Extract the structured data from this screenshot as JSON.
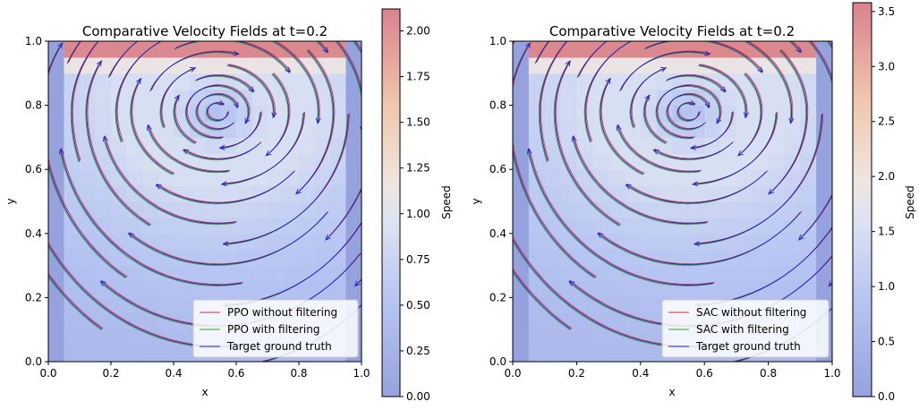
{
  "chart_data": [
    {
      "type": "heatmap",
      "title": "Comparative Velocity Fields at t=0.2",
      "xlabel": "x",
      "ylabel": "y",
      "xlim": [
        0.0,
        1.0
      ],
      "ylim": [
        0.0,
        1.0
      ],
      "xticks": [
        "0.0",
        "0.2",
        "0.4",
        "0.6",
        "0.8",
        "1.0"
      ],
      "yticks": [
        "0.0",
        "0.2",
        "0.4",
        "0.6",
        "0.8",
        "1.0"
      ],
      "colorbar": {
        "label": "Speed",
        "range": [
          0.0,
          2.12
        ],
        "ticks": [
          "0.00",
          "0.25",
          "0.50",
          "0.75",
          "1.00",
          "1.25",
          "1.50",
          "1.75",
          "2.00"
        ],
        "colormap": "coolwarm"
      },
      "vortex_center": [
        0.54,
        0.78
      ],
      "legend": {
        "position": "lower-right",
        "entries": [
          {
            "label": "PPO without filtering",
            "color": "#d62728"
          },
          {
            "label": "PPO with filtering",
            "color": "#2ca02c"
          },
          {
            "label": "Target ground truth",
            "color": "#1f1fd6"
          }
        ]
      },
      "grid": false
    },
    {
      "type": "heatmap",
      "title": "Comparative Velocity Fields at t=0.2",
      "xlabel": "x",
      "ylabel": "y",
      "xlim": [
        0.0,
        1.0
      ],
      "ylim": [
        0.0,
        1.0
      ],
      "xticks": [
        "0.0",
        "0.2",
        "0.4",
        "0.6",
        "0.8",
        "1.0"
      ],
      "yticks": [
        "0.0",
        "0.2",
        "0.4",
        "0.6",
        "0.8",
        "1.0"
      ],
      "colorbar": {
        "label": "Speed",
        "range": [
          0.0,
          3.58
        ],
        "ticks": [
          "0.0",
          "0.5",
          "1.0",
          "1.5",
          "2.0",
          "2.5",
          "3.0",
          "3.5"
        ],
        "colormap": "coolwarm"
      },
      "vortex_center": [
        0.55,
        0.78
      ],
      "legend": {
        "position": "lower-right",
        "entries": [
          {
            "label": "SAC without filtering",
            "color": "#d62728"
          },
          {
            "label": "SAC with filtering",
            "color": "#2ca02c"
          },
          {
            "label": "Target ground truth",
            "color": "#1f1fd6"
          }
        ]
      },
      "grid": false
    }
  ]
}
